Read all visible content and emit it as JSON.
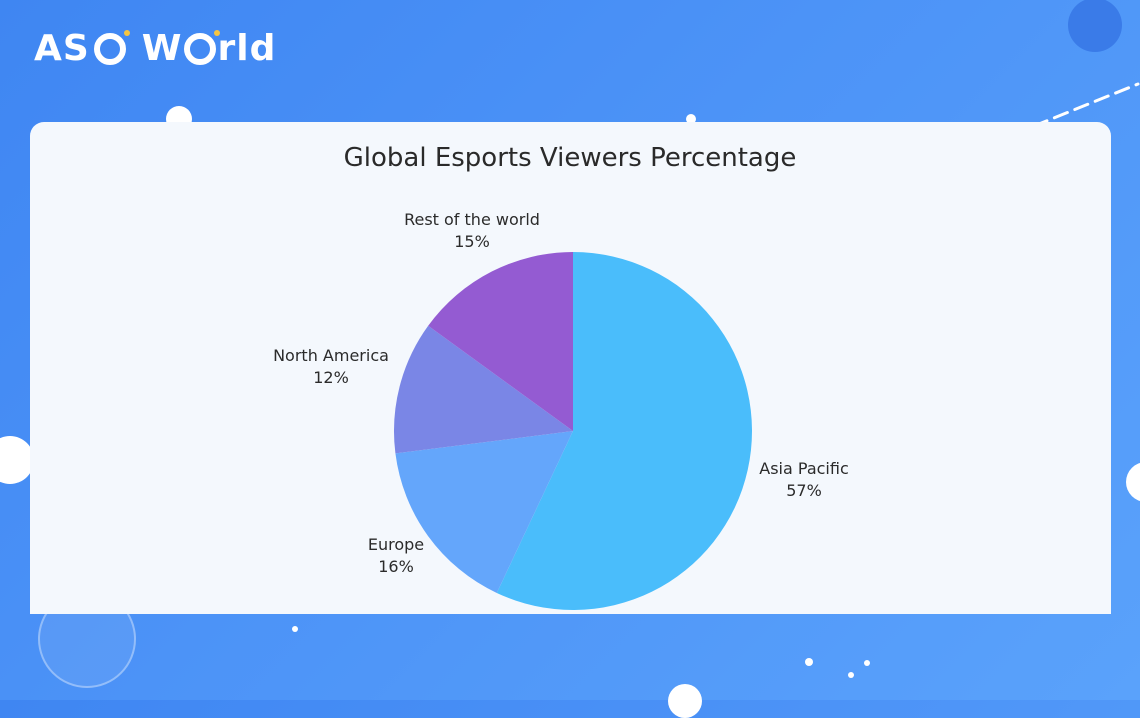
{
  "brand": {
    "logo_part1": "AS",
    "logo_part2": "W",
    "logo_part3": "rld"
  },
  "colors": {
    "background": "#4c93f7",
    "card": "#f4f8fd",
    "accent": "#f5c542"
  },
  "chart_data": {
    "type": "pie",
    "title": "Global Esports Viewers Percentage",
    "slices": [
      {
        "label": "Asia Pacific",
        "value": 57,
        "display": "57%",
        "color": "#4abdfb"
      },
      {
        "label": "Europe",
        "value": 16,
        "display": "16%",
        "color": "#64a6fb"
      },
      {
        "label": "North America",
        "value": 12,
        "display": "12%",
        "color": "#7a86e6"
      },
      {
        "label": "Rest of the world",
        "value": 15,
        "display": "15%",
        "color": "#945bd2"
      }
    ],
    "start": "12 o'clock",
    "direction": "clockwise",
    "legend": "none",
    "labels": "outside"
  }
}
